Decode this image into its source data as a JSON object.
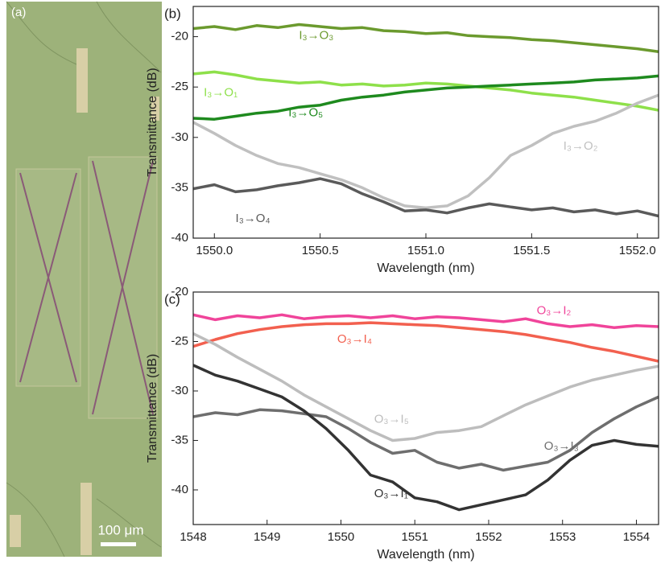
{
  "figure": {
    "label": "(a)",
    "scale_bar": "100 μm"
  },
  "chart_data": [
    {
      "type": "line",
      "label": "(b)",
      "x_label": "Wavelength (nm)",
      "y_label": "Transmittance (dB)",
      "x": [
        1549.9,
        1550.0,
        1550.1,
        1550.2,
        1550.3,
        1550.4,
        1550.5,
        1550.6,
        1550.7,
        1550.8,
        1550.9,
        1551.0,
        1551.1,
        1551.2,
        1551.3,
        1551.4,
        1551.5,
        1551.6,
        1551.7,
        1551.8,
        1551.9,
        1552.0,
        1552.1
      ],
      "xlim": [
        1549.9,
        1552.1
      ],
      "ylim": [
        -40,
        -17
      ],
      "xticks": [
        {
          "value": 1550,
          "label": "1550.0"
        },
        {
          "value": 1550.5,
          "label": "1550.5"
        },
        {
          "value": 1551,
          "label": "1551.0"
        },
        {
          "value": 1551.5,
          "label": "1551.5"
        },
        {
          "value": 1552,
          "label": "1552.0"
        }
      ],
      "yticks": [
        -40,
        -35,
        -30,
        -25,
        -20
      ],
      "series": [
        {
          "name": "I₃→O₃",
          "color": "#6b9a2e",
          "values": [
            -19.2,
            -19.0,
            -19.3,
            -18.9,
            -19.1,
            -18.8,
            -19.0,
            -19.2,
            -19.1,
            -19.4,
            -19.5,
            -19.7,
            -19.6,
            -19.9,
            -20.0,
            -20.1,
            -20.3,
            -20.4,
            -20.6,
            -20.8,
            -21.0,
            -21.2,
            -21.5
          ]
        },
        {
          "name": "I₃→O₁",
          "color": "#8ee04a",
          "values": [
            -23.7,
            -23.5,
            -23.8,
            -24.2,
            -24.4,
            -24.6,
            -24.5,
            -24.8,
            -24.7,
            -24.9,
            -24.8,
            -24.6,
            -24.7,
            -24.9,
            -25.1,
            -25.3,
            -25.6,
            -25.8,
            -26.0,
            -26.3,
            -26.6,
            -26.9,
            -27.3
          ]
        },
        {
          "name": "I₃→O₅",
          "color": "#1e8a1e",
          "values": [
            -28.1,
            -28.2,
            -27.9,
            -27.6,
            -27.4,
            -27.0,
            -26.8,
            -26.3,
            -26.0,
            -25.8,
            -25.5,
            -25.3,
            -25.1,
            -25.0,
            -24.9,
            -24.8,
            -24.7,
            -24.6,
            -24.5,
            -24.3,
            -24.2,
            -24.1,
            -23.9
          ]
        },
        {
          "name": "I₃→O₂",
          "color": "#c0c0c0",
          "values": [
            -28.5,
            -29.6,
            -30.8,
            -31.8,
            -32.6,
            -33.0,
            -33.6,
            -34.2,
            -35.0,
            -36.0,
            -36.8,
            -37.0,
            -36.8,
            -35.8,
            -34.0,
            -31.8,
            -30.8,
            -29.6,
            -28.9,
            -28.4,
            -27.6,
            -26.6,
            -25.8
          ]
        },
        {
          "name": "I₃→O₄",
          "color": "#5a5a5a",
          "values": [
            -35.1,
            -34.7,
            -35.4,
            -35.2,
            -34.8,
            -34.5,
            -34.1,
            -34.6,
            -35.6,
            -36.4,
            -37.3,
            -37.2,
            -37.5,
            -37.0,
            -36.6,
            -36.9,
            -37.2,
            -37.0,
            -37.4,
            -37.2,
            -37.6,
            -37.3,
            -37.8
          ]
        }
      ]
    },
    {
      "type": "line",
      "label": "(c)",
      "x_label": "Wavelength (nm)",
      "y_label": "Transmittance (dB)",
      "x": [
        1548,
        1548.3,
        1548.6,
        1548.9,
        1549.2,
        1549.5,
        1549.8,
        1550.1,
        1550.4,
        1550.7,
        1551,
        1551.3,
        1551.6,
        1551.9,
        1552.2,
        1552.5,
        1552.8,
        1553.1,
        1553.4,
        1553.7,
        1554,
        1554.3
      ],
      "xlim": [
        1548,
        1554.3
      ],
      "ylim": [
        -43.5,
        -20
      ],
      "xticks": [
        1548,
        1549,
        1550,
        1551,
        1552,
        1553,
        1554
      ],
      "yticks": [
        -40,
        -35,
        -30,
        -25,
        -20
      ],
      "series": [
        {
          "name": "O₃→I₂",
          "color": "#f0449a",
          "values": [
            -22.3,
            -22.8,
            -22.4,
            -22.6,
            -22.3,
            -22.7,
            -22.5,
            -22.4,
            -22.6,
            -22.4,
            -22.7,
            -22.5,
            -22.6,
            -22.8,
            -23.0,
            -22.7,
            -23.2,
            -23.5,
            -23.3,
            -23.6,
            -23.4,
            -23.5
          ]
        },
        {
          "name": "O₃→I₄",
          "color": "#f2604f",
          "values": [
            -25.5,
            -24.8,
            -24.2,
            -23.8,
            -23.5,
            -23.3,
            -23.2,
            -23.2,
            -23.1,
            -23.2,
            -23.3,
            -23.4,
            -23.6,
            -23.8,
            -24.0,
            -24.3,
            -24.7,
            -25.1,
            -25.6,
            -26.0,
            -26.5,
            -27.0
          ]
        },
        {
          "name": "O₃→I₅",
          "color": "#bdbdbd",
          "values": [
            -24.2,
            -25.3,
            -26.6,
            -27.8,
            -29.0,
            -30.4,
            -31.6,
            -32.8,
            -34.0,
            -35.0,
            -34.8,
            -34.2,
            -34.0,
            -33.6,
            -32.5,
            -31.4,
            -30.5,
            -29.6,
            -28.9,
            -28.4,
            -27.9,
            -27.5
          ]
        },
        {
          "name": "O₃→I₃",
          "color": "#6e6e6e",
          "values": [
            -32.6,
            -32.2,
            -32.4,
            -31.9,
            -32.0,
            -32.3,
            -32.6,
            -33.8,
            -35.2,
            -36.3,
            -36.0,
            -37.2,
            -37.8,
            -37.4,
            -38.0,
            -37.6,
            -37.2,
            -36.0,
            -34.2,
            -32.8,
            -31.6,
            -30.6
          ]
        },
        {
          "name": "O₃→I₁",
          "color": "#333333",
          "values": [
            -27.4,
            -28.4,
            -29.0,
            -29.8,
            -30.6,
            -32.0,
            -33.8,
            -36.0,
            -38.5,
            -39.2,
            -40.8,
            -41.2,
            -42.0,
            -41.5,
            -41.0,
            -40.5,
            -39.0,
            -37.0,
            -35.5,
            -35.0,
            -35.4,
            -35.6
          ]
        }
      ]
    }
  ]
}
